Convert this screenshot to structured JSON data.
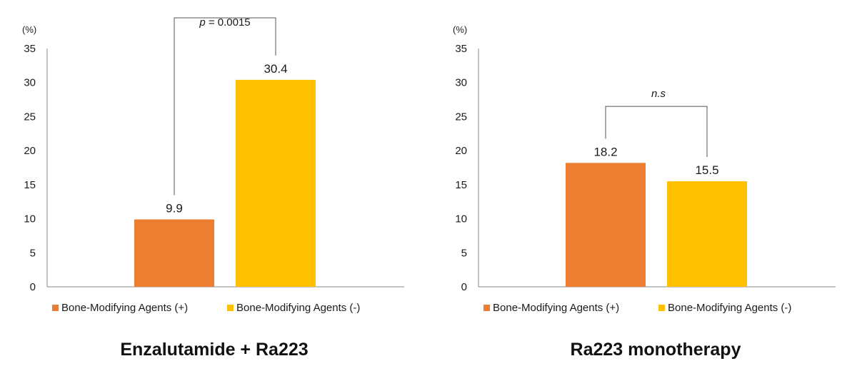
{
  "chart_data": [
    {
      "type": "bar",
      "title": "Enzalutamide + Ra223",
      "unit_label": "(%)",
      "ylim": [
        0,
        35
      ],
      "yticks": [
        0,
        5,
        10,
        15,
        20,
        25,
        30,
        35
      ],
      "grid": false,
      "legend_position": "bottom",
      "series": [
        {
          "name": "Bone-Modifying Agents (+)",
          "color": "#ED7D31",
          "values": [
            9.9
          ],
          "labels": [
            "9.9"
          ]
        },
        {
          "name": "Bone-Modifying Agents (-)",
          "color": "#FFC000",
          "values": [
            30.4
          ],
          "labels": [
            "30.4"
          ]
        }
      ],
      "annotation": {
        "text": "p = 0.0015",
        "italic_prefix": "p",
        "rest": " = 0.0015",
        "bracket_height": 39.5
      }
    },
    {
      "type": "bar",
      "title": "Ra223 monotherapy",
      "unit_label": "(%)",
      "ylim": [
        0,
        35
      ],
      "yticks": [
        0,
        5,
        10,
        15,
        20,
        25,
        30,
        35
      ],
      "grid": false,
      "legend_position": "bottom",
      "series": [
        {
          "name": "Bone-Modifying Agents (+)",
          "color": "#ED7D31",
          "values": [
            18.2
          ],
          "labels": [
            "18.2"
          ]
        },
        {
          "name": "Bone-Modifying Agents (-)",
          "color": "#FFC000",
          "values": [
            15.5
          ],
          "labels": [
            "15.5"
          ]
        }
      ],
      "annotation": {
        "text": "n.s",
        "italic_prefix": "n.s",
        "rest": "",
        "bracket_height": 26.5
      }
    }
  ]
}
